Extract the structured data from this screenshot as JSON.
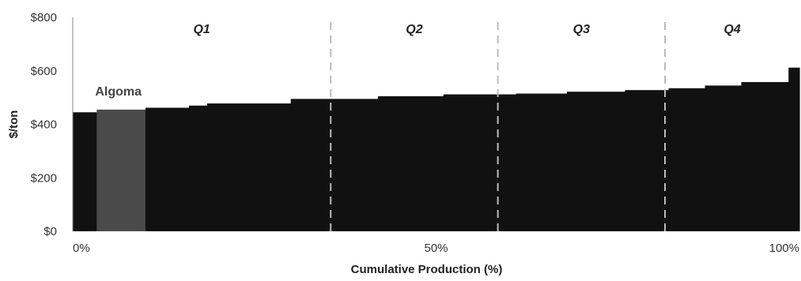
{
  "chart_data": {
    "type": "bar",
    "subtype": "cost-curve",
    "title": "",
    "xlabel": "Cumulative Production (%)",
    "ylabel": "$/ton",
    "xlim": [
      0,
      100
    ],
    "ylim": [
      0,
      800
    ],
    "x_ticks": [
      "0%",
      "50%",
      "100%"
    ],
    "y_ticks": [
      "$0",
      "$200",
      "$400",
      "$600",
      "$800"
    ],
    "grid": false,
    "colors": {
      "bars": "#111111",
      "highlight": "#4a4a4a",
      "divider": "#bbbbbb"
    },
    "segments": [
      {
        "x_start": 0,
        "x_end": 3.3,
        "value": 445
      },
      {
        "x_start": 3.3,
        "x_end": 10,
        "value": 455,
        "label": "Algoma",
        "highlight": true
      },
      {
        "x_start": 10,
        "x_end": 16,
        "value": 462
      },
      {
        "x_start": 16,
        "x_end": 18.5,
        "value": 470
      },
      {
        "x_start": 18.5,
        "x_end": 30,
        "value": 478
      },
      {
        "x_start": 30,
        "x_end": 42,
        "value": 495
      },
      {
        "x_start": 42,
        "x_end": 51,
        "value": 505
      },
      {
        "x_start": 51,
        "x_end": 61,
        "value": 512
      },
      {
        "x_start": 61,
        "x_end": 68,
        "value": 515
      },
      {
        "x_start": 68,
        "x_end": 76,
        "value": 522
      },
      {
        "x_start": 76,
        "x_end": 82,
        "value": 528
      },
      {
        "x_start": 82,
        "x_end": 87,
        "value": 535
      },
      {
        "x_start": 87,
        "x_end": 92,
        "value": 545
      },
      {
        "x_start": 92,
        "x_end": 98.5,
        "value": 558
      },
      {
        "x_start": 98.5,
        "x_end": 100,
        "value": 612
      }
    ],
    "quartiles": [
      {
        "label": "Q1",
        "x_start": 0,
        "x_end": 35.5
      },
      {
        "label": "Q2",
        "x_start": 35.5,
        "x_end": 58.5
      },
      {
        "label": "Q3",
        "x_start": 58.5,
        "x_end": 81.5
      },
      {
        "label": "Q4",
        "x_start": 81.5,
        "x_end": 100
      }
    ],
    "annotations": [
      {
        "text": "Algoma",
        "segment": 1
      }
    ]
  }
}
